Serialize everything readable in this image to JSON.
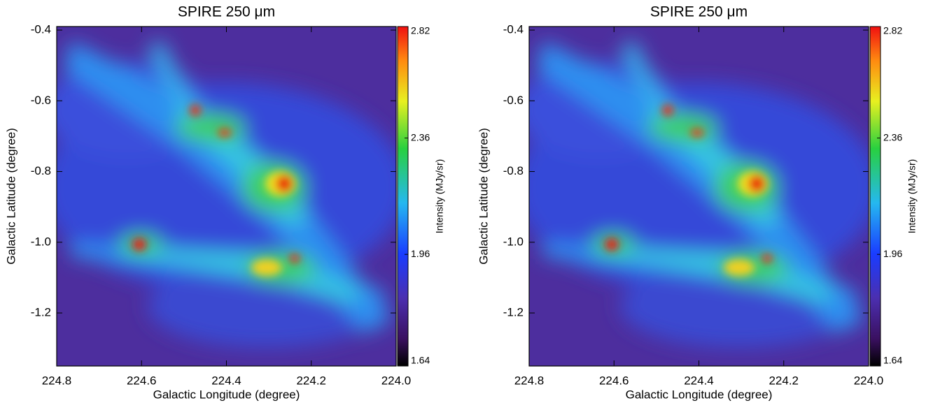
{
  "chart_data": [
    {
      "type": "image",
      "title": "SPIRE 250 μm",
      "xlabel": "Galactic Longitude (degree)",
      "ylabel": "Galactic Latitude (degree)",
      "xlim": [
        224.8,
        224.0
      ],
      "xticks": [
        224.8,
        224.6,
        224.4,
        224.2,
        {
          "value": 224,
          "label": "224.0"
        }
      ],
      "ylim": [
        -1.35,
        -0.39
      ],
      "yticks": [
        -0.4,
        -0.6,
        -0.8,
        {
          "value": -1,
          "label": "-1.0"
        },
        -1.2
      ],
      "colorbar": {
        "label": "Intensity (MJy/sr)",
        "lim": [
          1.64,
          2.82
        ],
        "ticks": [
          1.64,
          1.96,
          2.36,
          2.82
        ],
        "log": true
      }
    },
    {
      "type": "image",
      "title": "SPIRE 250 μm",
      "xlabel": "Galactic Longitude (degree)",
      "ylabel": "Galactic Latitude (degree)",
      "xlim": [
        224.8,
        224.0
      ],
      "xticks": [
        224.8,
        224.6,
        224.4,
        224.2,
        {
          "value": 224,
          "label": "224.0"
        }
      ],
      "ylim": [
        -1.35,
        -0.39
      ],
      "yticks": [
        -0.4,
        -0.6,
        -0.8,
        {
          "value": -1,
          "label": "-1.0"
        },
        -1.2
      ],
      "colorbar": {
        "label": "Intensity (MJy/sr)",
        "lim": [
          1.64,
          2.82
        ],
        "ticks": [
          1.64,
          1.96,
          2.36,
          2.82
        ],
        "log": true
      }
    }
  ]
}
